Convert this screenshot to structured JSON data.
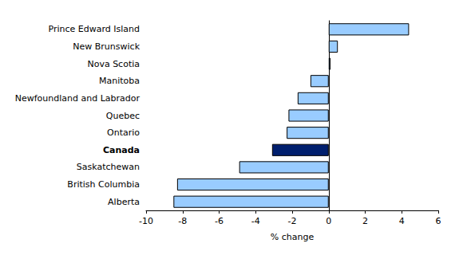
{
  "chart_data": {
    "type": "bar",
    "orientation": "horizontal",
    "categories": [
      "Prince Edward Island",
      "New Brunswick",
      "Nova Scotia",
      "Manitoba",
      "Newfoundland and Labrador",
      "Quebec",
      "Ontario",
      "Canada",
      "Saskatchewan",
      "British Columbia",
      "Alberta"
    ],
    "values": [
      4.4,
      0.5,
      0.1,
      -1.0,
      -1.7,
      -2.2,
      -2.3,
      -3.1,
      -4.9,
      -8.3,
      -8.5
    ],
    "colors": [
      "#99ccff",
      "#99ccff",
      "#99ccff",
      "#99ccff",
      "#99ccff",
      "#99ccff",
      "#99ccff",
      "#001f6e",
      "#99ccff",
      "#99ccff",
      "#99ccff"
    ],
    "x_label": "% change",
    "xlim": [
      -10,
      6
    ],
    "xticks": [
      -10,
      -8,
      -6,
      -4,
      -2,
      0,
      2,
      4,
      6
    ],
    "grid": false
  }
}
